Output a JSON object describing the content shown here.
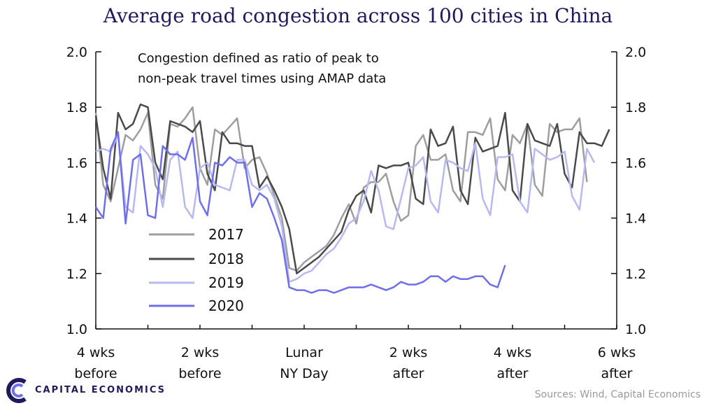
{
  "chart_data": {
    "type": "line",
    "title": "Average road congestion across 100 cities in China",
    "annotation": [
      "Congestion  defined  as ratio of peak to",
      "non-peak  travel times using  AMAP data"
    ],
    "ylim": [
      1.0,
      2.0
    ],
    "yticks": [
      "1.0",
      "1.2",
      "1.4",
      "1.6",
      "1.8",
      "2.0"
    ],
    "xlim": [
      -28,
      42
    ],
    "xticks": [
      {
        "day": -28,
        "lines": [
          "4 wks",
          "before"
        ]
      },
      {
        "day": -14,
        "lines": [
          "2 wks",
          "before"
        ]
      },
      {
        "day": 0,
        "lines": [
          "Lunar",
          "NY Day"
        ]
      },
      {
        "day": 14,
        "lines": [
          "2 wks",
          "after"
        ]
      },
      {
        "day": 28,
        "lines": [
          "4 wks",
          "after"
        ]
      },
      {
        "day": 42,
        "lines": [
          "6 wks",
          "after"
        ]
      }
    ],
    "legend_position": "center-left",
    "series": [
      {
        "name": "2017",
        "color": "#9e9e9e",
        "x_start": -28,
        "values": [
          1.78,
          1.52,
          1.46,
          1.58,
          1.7,
          1.68,
          1.72,
          1.78,
          1.52,
          1.47,
          1.74,
          1.73,
          1.76,
          1.8,
          1.58,
          1.52,
          1.72,
          1.7,
          1.73,
          1.76,
          1.58,
          1.61,
          1.62,
          1.56,
          1.48,
          1.4,
          1.22,
          1.21,
          1.24,
          1.26,
          1.28,
          1.3,
          1.34,
          1.4,
          1.45,
          1.38,
          1.51,
          1.53,
          1.53,
          1.56,
          1.46,
          1.39,
          1.41,
          1.66,
          1.7,
          1.61,
          1.61,
          1.63,
          1.5,
          1.46,
          1.71,
          1.71,
          1.7,
          1.76,
          1.54,
          1.5,
          1.7,
          1.67,
          1.74,
          1.52,
          1.48,
          1.74,
          1.71,
          1.72,
          1.72,
          1.76,
          1.53
        ]
      },
      {
        "name": "2018",
        "color": "#4a4a4a",
        "x_start": -28,
        "values": [
          1.77,
          1.58,
          1.47,
          1.78,
          1.72,
          1.74,
          1.81,
          1.8,
          1.6,
          1.54,
          1.75,
          1.74,
          1.73,
          1.71,
          1.75,
          1.56,
          1.5,
          1.71,
          1.67,
          1.67,
          1.66,
          1.66,
          1.51,
          1.55,
          1.5,
          1.44,
          1.36,
          1.2,
          1.22,
          1.24,
          1.26,
          1.29,
          1.32,
          1.35,
          1.43,
          1.48,
          1.5,
          1.42,
          1.59,
          1.58,
          1.59,
          1.59,
          1.6,
          1.47,
          1.45,
          1.72,
          1.66,
          1.67,
          1.73,
          1.5,
          1.45,
          1.69,
          1.64,
          1.65,
          1.66,
          1.78,
          1.5,
          1.46,
          1.74,
          1.68,
          1.67,
          1.66,
          1.74,
          1.56,
          1.51,
          1.71,
          1.67,
          1.67,
          1.66,
          1.72
        ]
      },
      {
        "name": "2019",
        "color": "#b8b8f2",
        "x_start": -28,
        "values": [
          1.64,
          1.65,
          1.64,
          1.7,
          1.44,
          1.42,
          1.66,
          1.63,
          1.58,
          1.44,
          1.61,
          1.64,
          1.44,
          1.4,
          1.58,
          1.6,
          1.52,
          1.51,
          1.5,
          1.61,
          1.61,
          1.52,
          1.5,
          1.52,
          1.47,
          1.37,
          1.17,
          1.18,
          1.2,
          1.21,
          1.24,
          1.27,
          1.29,
          1.33,
          1.38,
          1.4,
          1.46,
          1.57,
          1.5,
          1.37,
          1.36,
          1.47,
          1.58,
          1.59,
          1.62,
          1.46,
          1.42,
          1.61,
          1.6,
          1.58,
          1.57,
          1.67,
          1.47,
          1.41,
          1.62,
          1.62,
          1.63,
          1.46,
          1.42,
          1.65,
          1.63,
          1.61,
          1.62,
          1.64,
          1.48,
          1.43,
          1.65,
          1.6
        ]
      },
      {
        "name": "2020",
        "color": "#6f6fea",
        "x_start": -28,
        "values": [
          1.44,
          1.4,
          1.65,
          1.71,
          1.38,
          1.61,
          1.63,
          1.41,
          1.4,
          1.66,
          1.63,
          1.63,
          1.61,
          1.69,
          1.46,
          1.41,
          1.6,
          1.59,
          1.62,
          1.6,
          1.6,
          1.44,
          1.49,
          1.47,
          1.4,
          1.32,
          1.15,
          1.14,
          1.14,
          1.13,
          1.14,
          1.14,
          1.13,
          1.14,
          1.15,
          1.15,
          1.15,
          1.16,
          1.15,
          1.14,
          1.15,
          1.17,
          1.16,
          1.16,
          1.17,
          1.19,
          1.19,
          1.17,
          1.19,
          1.18,
          1.18,
          1.19,
          1.19,
          1.16,
          1.15,
          1.23
        ]
      }
    ]
  },
  "branding": {
    "logo_text": "CAPITAL ECONOMICS",
    "source": "Sources: Wind, Capital Economics"
  }
}
